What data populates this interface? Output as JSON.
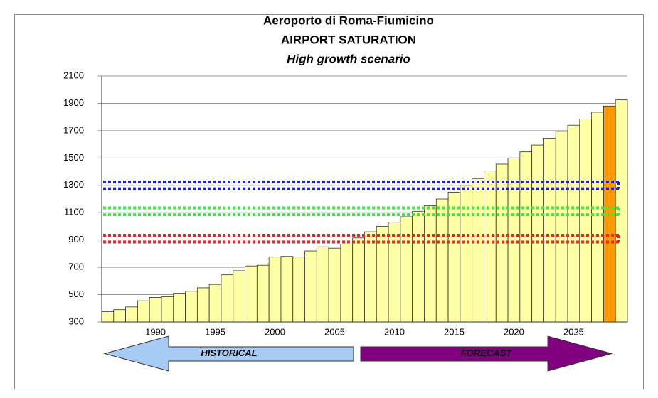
{
  "chart_data": {
    "type": "bar",
    "title": "Aeroporto di Roma-Fiumicino",
    "subtitle": "AIRPORT SATURATION",
    "scenario": "High growth scenario",
    "categories": [
      null,
      null,
      null,
      null,
      "1990",
      null,
      null,
      null,
      null,
      "1995",
      null,
      null,
      null,
      null,
      "2000",
      null,
      null,
      null,
      null,
      "2005",
      null,
      null,
      null,
      null,
      "2010",
      null,
      null,
      null,
      null,
      "2015",
      null,
      null,
      null,
      null,
      "2020",
      null,
      null,
      null,
      null,
      "2025",
      null,
      null,
      null,
      null
    ],
    "values": [
      375,
      390,
      410,
      455,
      480,
      485,
      510,
      525,
      550,
      575,
      645,
      675,
      710,
      715,
      775,
      780,
      775,
      820,
      850,
      840,
      870,
      915,
      960,
      1000,
      1030,
      1070,
      1110,
      1150,
      1200,
      1250,
      1300,
      1350,
      1405,
      1455,
      1500,
      1545,
      1595,
      1645,
      1695,
      1740,
      1785,
      1835,
      1880,
      1925
    ],
    "colors": [
      "#ffffa6",
      "#ffffa6",
      "#ffffa6",
      "#ffffa6",
      "#ffffa6",
      "#ffffa6",
      "#ffffa6",
      "#ffffa6",
      "#ffffa6",
      "#ffffa6",
      "#ffffa6",
      "#ffffa6",
      "#ffffa6",
      "#ffffa6",
      "#ffffa6",
      "#ffffa6",
      "#ffffa6",
      "#ffffa6",
      "#ffffa6",
      "#ffffa6",
      "#ffffa6",
      "#ffffa6",
      "#ffffa6",
      "#ffffa6",
      "#ffffa6",
      "#ffffa6",
      "#ffffa6",
      "#ffffa6",
      "#ffffa6",
      "#ffffa6",
      "#ffffa6",
      "#ffffa6",
      "#ffffa6",
      "#ffffa6",
      "#ffffa6",
      "#ffffa6",
      "#ffffa6",
      "#ffffa6",
      "#ffffa6",
      "#ffffa6",
      "#ffffa6",
      "#ffffa6",
      "#ff9900",
      "#ffffa6"
    ],
    "ylim": [
      300,
      2100
    ],
    "yticks": [
      300,
      500,
      700,
      900,
      1100,
      1300,
      1500,
      1700,
      1900,
      2100
    ],
    "grid": true,
    "reference_bands": [
      {
        "color": "#2020e0",
        "values": [
          1275,
          1325
        ]
      },
      {
        "color": "#33ee33",
        "values": [
          1085,
          1135
        ]
      },
      {
        "color": "#ee2020",
        "values": [
          885,
          935
        ]
      }
    ],
    "arrows": [
      {
        "label": "HISTORICAL",
        "color": "#a6cbf5",
        "direction": "left"
      },
      {
        "label": "FORECAST",
        "color": "#800080",
        "direction": "right"
      }
    ]
  }
}
